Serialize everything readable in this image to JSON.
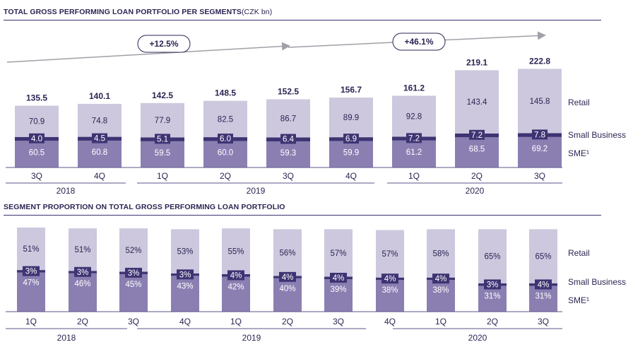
{
  "colors": {
    "retail": "#cdc8de",
    "small_business": "#3e3473",
    "sme": "#8b7fb2",
    "text_dark": "#2b2553",
    "axis": "#5a5488",
    "arrow": "#a0a0a8"
  },
  "chart_data": [
    {
      "type": "bar",
      "stacked": true,
      "title": "TOTAL GROSS PERFORMING LOAN PORTFOLIO PER SEGMENTS",
      "unit": "(CZK bn)",
      "categories": [
        "3Q",
        "4Q",
        "1Q",
        "2Q",
        "3Q",
        "4Q",
        "1Q",
        "2Q",
        "3Q"
      ],
      "years": [
        {
          "label": "2018"
        },
        {
          "label": "2019"
        },
        {
          "label": "2020"
        }
      ],
      "series": [
        {
          "name": "SME",
          "legend": "SME¹",
          "values": [
            60.5,
            60.8,
            59.5,
            60.0,
            59.3,
            59.9,
            61.2,
            68.5,
            69.2
          ]
        },
        {
          "name": "Small Business",
          "legend": "Small Business",
          "values": [
            4.0,
            4.5,
            5.1,
            6.0,
            6.4,
            6.9,
            7.2,
            7.2,
            7.8
          ]
        },
        {
          "name": "Retail",
          "legend": "Retail",
          "values": [
            70.9,
            74.8,
            77.9,
            82.5,
            86.7,
            89.9,
            92.8,
            143.4,
            145.8
          ]
        }
      ],
      "totals": [
        135.5,
        140.1,
        142.5,
        148.5,
        152.5,
        156.7,
        161.2,
        219.1,
        222.8
      ],
      "growth_labels": [
        "+12.5%",
        "+46.1%"
      ]
    },
    {
      "type": "bar",
      "stacked": true,
      "title": "SEGMENT PROPORTION ON TOTAL GROSS PERFORMING LOAN PORTFOLIO",
      "categories": [
        "1Q",
        "2Q",
        "3Q",
        "4Q",
        "1Q",
        "2Q",
        "3Q",
        "4Q",
        "1Q",
        "2Q",
        "3Q"
      ],
      "years": [
        {
          "label": "2018"
        },
        {
          "label": "2019"
        },
        {
          "label": "2020"
        }
      ],
      "series": [
        {
          "name": "SME",
          "legend": "SME¹",
          "values": [
            47,
            46,
            45,
            43,
            42,
            40,
            39,
            38,
            38,
            31,
            31
          ],
          "labels": [
            "47%",
            "46%",
            "45%",
            "43%",
            "42%",
            "40%",
            "39%",
            "38%",
            "38%",
            "31%",
            "31%"
          ]
        },
        {
          "name": "Small Business",
          "legend": "Small Business",
          "values": [
            3,
            3,
            3,
            3,
            4,
            4,
            4,
            4,
            4,
            3,
            4
          ],
          "labels": [
            "3%",
            "3%",
            "3%",
            "3%",
            "4%",
            "4%",
            "4%",
            "4%",
            "4%",
            "3%",
            "4%"
          ]
        },
        {
          "name": "Retail",
          "legend": "Retail",
          "values": [
            51,
            51,
            52,
            53,
            55,
            56,
            57,
            57,
            58,
            65,
            65
          ],
          "labels": [
            "51%",
            "51%",
            "52%",
            "53%",
            "55%",
            "56%",
            "57%",
            "57%",
            "58%",
            "65%",
            "65%"
          ]
        }
      ]
    }
  ]
}
